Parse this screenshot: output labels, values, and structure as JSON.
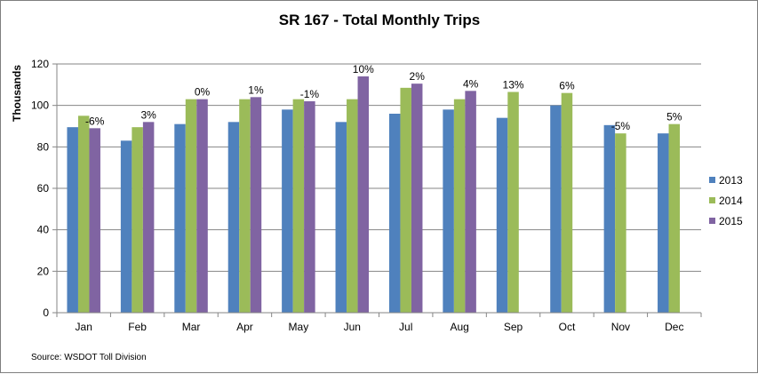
{
  "chart_data": {
    "type": "bar",
    "title": "SR 167 - Total Monthly Trips",
    "ylabel": "Thousands",
    "xlabel": "",
    "ylim": [
      0,
      120
    ],
    "yticks": [
      0,
      20,
      40,
      60,
      80,
      100,
      120
    ],
    "grid": true,
    "legend_position": "right",
    "source": "Source: WSDOT Toll Division",
    "categories": [
      "Jan",
      "Feb",
      "Mar",
      "Apr",
      "May",
      "Jun",
      "Jul",
      "Aug",
      "Sep",
      "Oct",
      "Nov",
      "Dec"
    ],
    "series": [
      {
        "name": "2013",
        "color": "#4f81bd",
        "values": [
          89.5,
          83,
          91,
          92,
          98,
          92,
          96,
          98,
          94,
          100,
          90.5,
          86.5
        ]
      },
      {
        "name": "2014",
        "color": "#9bbb59",
        "values": [
          95,
          89.5,
          103,
          103,
          103,
          103,
          108.5,
          103,
          106.5,
          106,
          86.5,
          91
        ]
      },
      {
        "name": "2015",
        "color": "#8064a2",
        "values": [
          89,
          92,
          103,
          104,
          102,
          114,
          110.5,
          107,
          null,
          null,
          null,
          null
        ]
      }
    ],
    "annotations": [
      {
        "category": "Jan",
        "text": "-6%"
      },
      {
        "category": "Feb",
        "text": "3%"
      },
      {
        "category": "Mar",
        "text": "0%"
      },
      {
        "category": "Apr",
        "text": "1%"
      },
      {
        "category": "May",
        "text": "-1%"
      },
      {
        "category": "Jun",
        "text": "10%"
      },
      {
        "category": "Jul",
        "text": "2%"
      },
      {
        "category": "Aug",
        "text": "4%"
      },
      {
        "category": "Sep",
        "text": "13%"
      },
      {
        "category": "Oct",
        "text": "6%"
      },
      {
        "category": "Nov",
        "text": "-5%"
      },
      {
        "category": "Dec",
        "text": "5%"
      }
    ]
  }
}
